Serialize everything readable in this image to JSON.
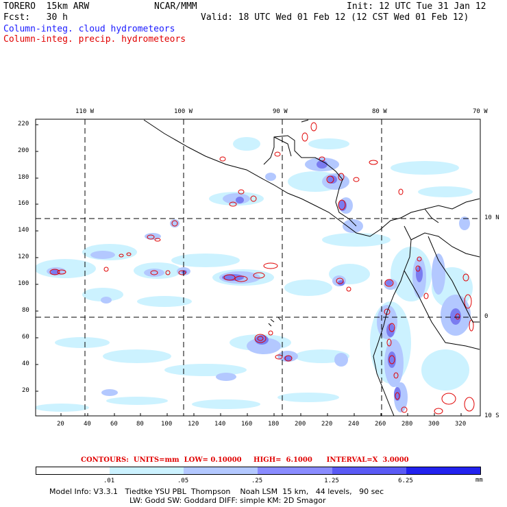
{
  "header": {
    "model": "TORERO  15km ARW",
    "org": "NCAR/MMM",
    "init": "Init: 12 UTC Tue 31 Jan 12",
    "fcst": "Fcst:   30 h",
    "valid": "Valid: 18 UTC Wed 01 Feb 12 (12 CST Wed 01 Feb 12)",
    "field1": "Column-integ. cloud hydrometeors",
    "field2": "Column-integ. precip. hydrometeors"
  },
  "axes": {
    "top_labels": [
      "110 W",
      "100 W",
      "90 W",
      "80 W",
      "70 W"
    ],
    "right_labels": [
      "10 N",
      "0",
      "10 S"
    ],
    "left_labels": [
      "220",
      "200",
      "180",
      "160",
      "140",
      "120",
      "100",
      "80",
      "60",
      "40",
      "20"
    ],
    "bottom_labels": [
      "20",
      "40",
      "60",
      "80",
      "100",
      "120",
      "140",
      "160",
      "180",
      "200",
      "220",
      "240",
      "260",
      "280",
      "300",
      "320"
    ]
  },
  "contours": {
    "label": "CONTOURS:  UNITS=mm  LOW= 0.10000     HIGH=  6.1000      INTERVAL=X  3.0000"
  },
  "legend": {
    "unit": "mm",
    "thresholds": [
      ".01",
      ".05",
      ".25",
      "1.25",
      "6.25"
    ],
    "colors": [
      "#ffffff",
      "#ccf2ff",
      "#b3c8ff",
      "#8a8cff",
      "#5a5af5",
      "#2222ee"
    ]
  },
  "footer": {
    "line1": "Model Info: V3.3.1   Tiedtke YSU PBL  Thompson    Noah LSM  15 km,   44 levels,   90 sec",
    "line2": "LW: Godd SW: Goddard DIFF: simple KM: 2D Smagor"
  }
}
